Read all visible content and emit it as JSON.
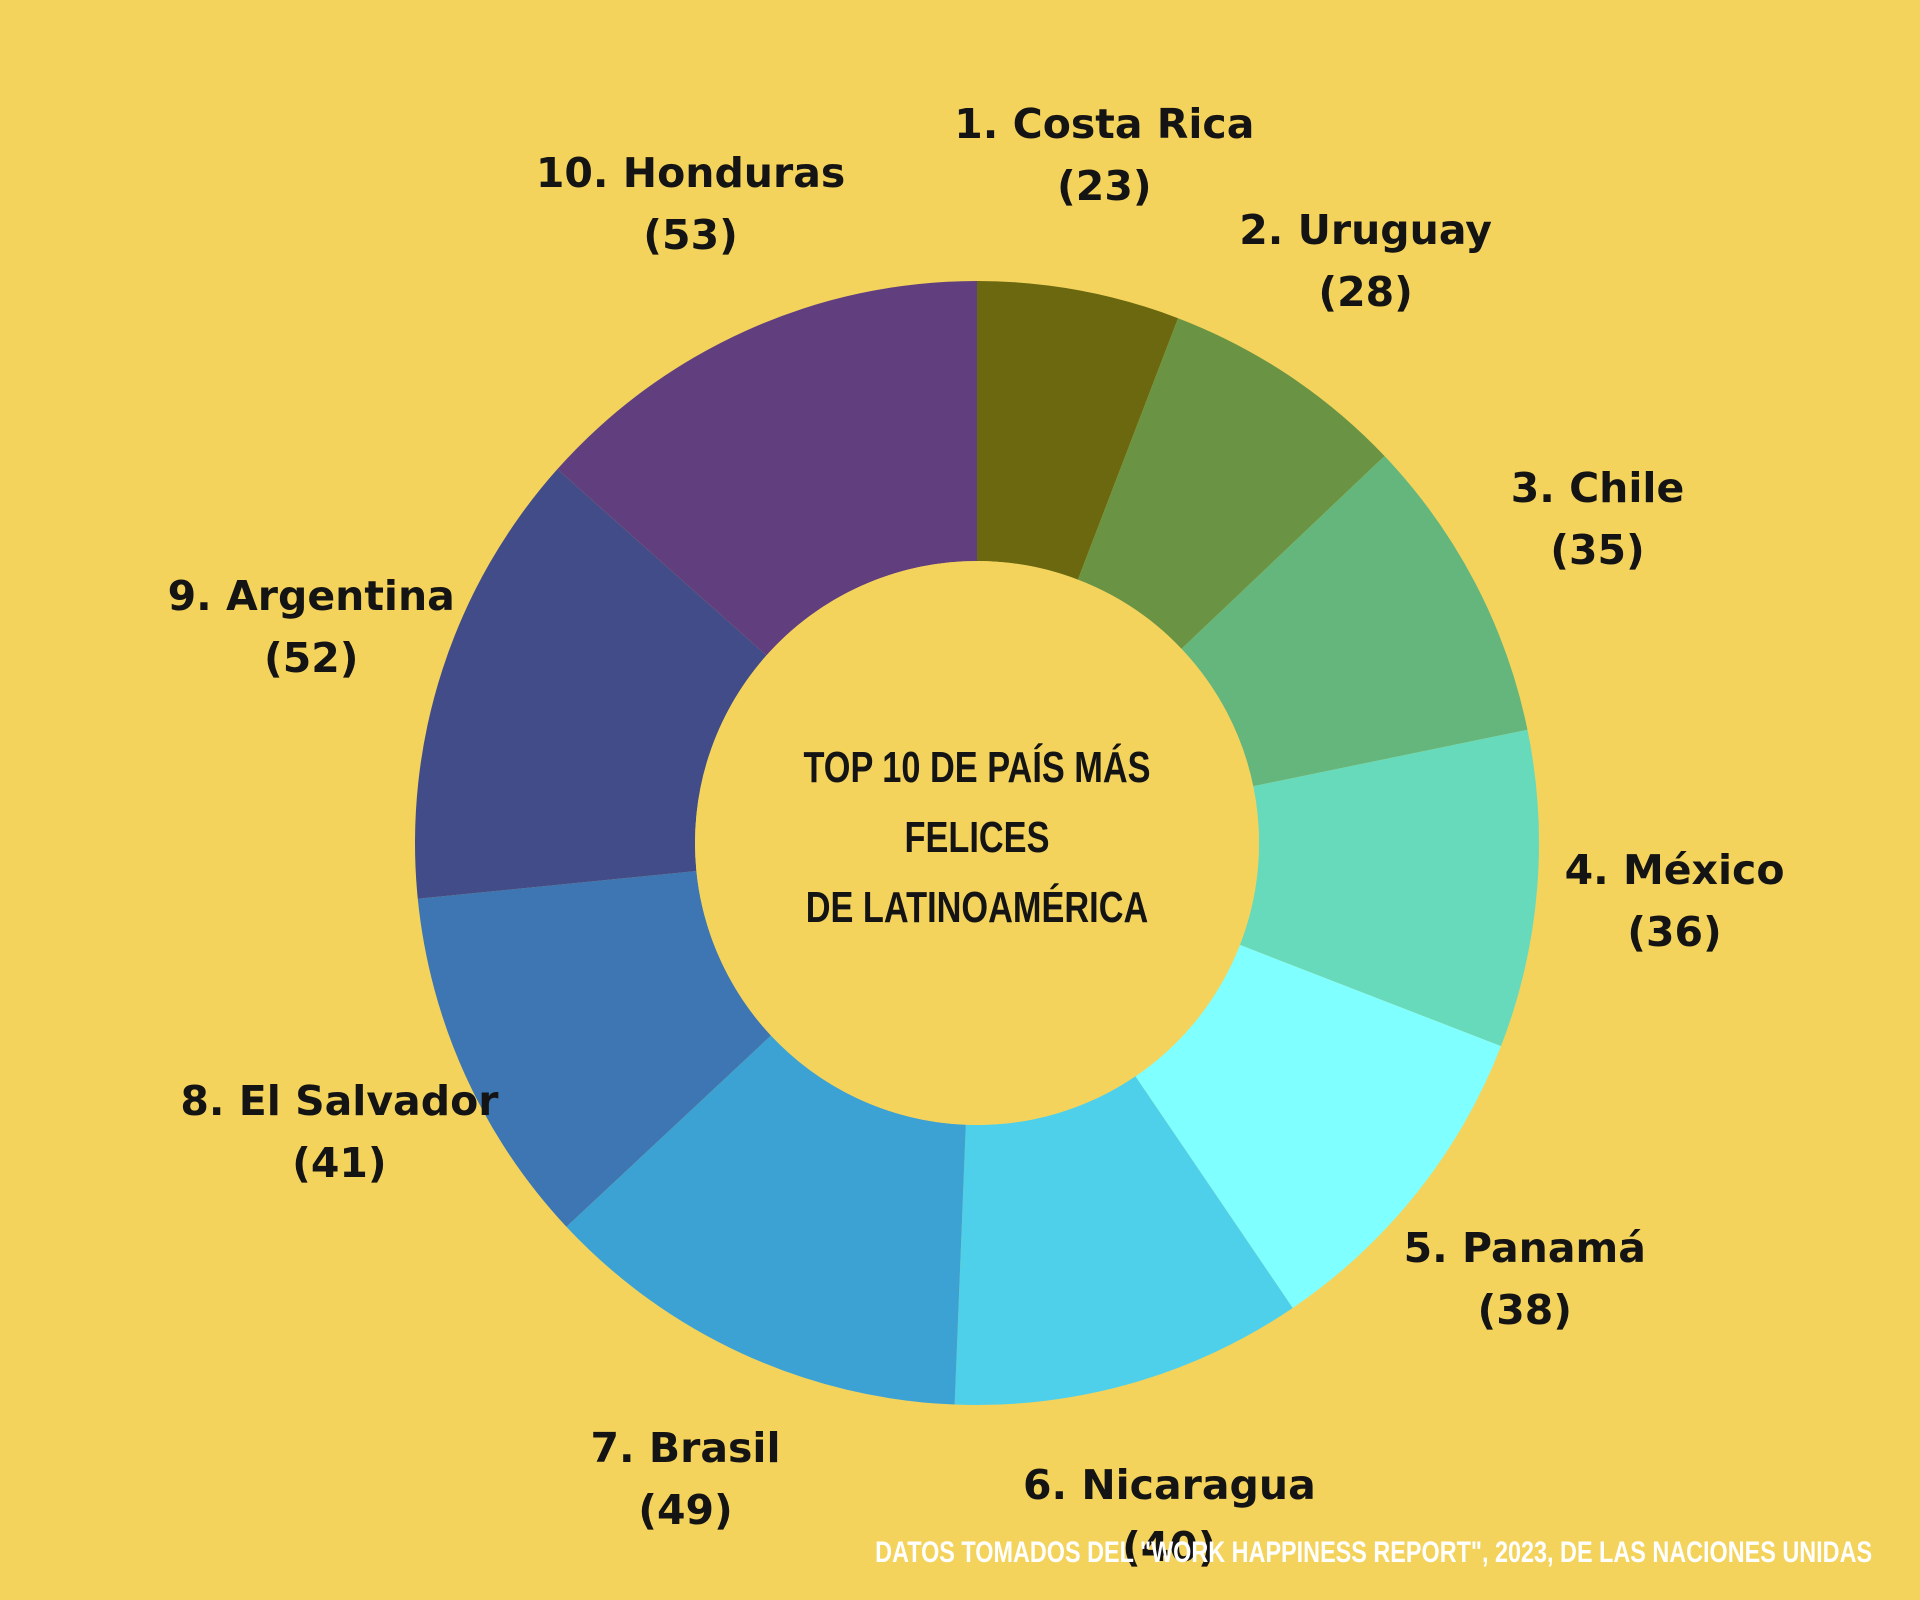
{
  "chart_data": {
    "type": "pie",
    "variant": "donut",
    "title_lines": [
      "TOP 10 DE PAÍS MÁS FELICES",
      "DE  LATINOAMÉRICA"
    ],
    "slices": [
      {
        "label": "1. Costa Rica",
        "value": 23,
        "value_text": "(23)",
        "color": "#6B680F"
      },
      {
        "label": "2. Uruguay",
        "value": 28,
        "value_text": "(28)",
        "color": "#6A9444"
      },
      {
        "label": "3. Chile",
        "value": 35,
        "value_text": "(35)",
        "color": "#65B67C"
      },
      {
        "label": "4. México",
        "value": 36,
        "value_text": "(36)",
        "color": "#67DABC"
      },
      {
        "label": "5. Panamá",
        "value": 38,
        "value_text": "(38)",
        "color": "#7FFFFF"
      },
      {
        "label": "6. Nicaragua",
        "value": 40,
        "value_text": "(40)",
        "color": "#4FD0EA"
      },
      {
        "label": "7. Brasil",
        "value": 49,
        "value_text": "(49)",
        "color": "#3CA2D4"
      },
      {
        "label": "8. El Salvador",
        "value": 41,
        "value_text": "(41)",
        "color": "#3D76B3"
      },
      {
        "label": "9. Argentina",
        "value": 52,
        "value_text": "(52)",
        "color": "#414C88"
      },
      {
        "label": "10. Honduras",
        "value": 53,
        "value_text": "(53)",
        "color": "#613F7E"
      }
    ],
    "source": "DATOS TOMADOS DEL \"WORK HAPPINESS REPORT\", 2023, DE LAS NACIONES UNIDAS"
  },
  "colors": {
    "background": "#F3D35C",
    "text": "#141414",
    "source_text": "#FFFFFF"
  }
}
